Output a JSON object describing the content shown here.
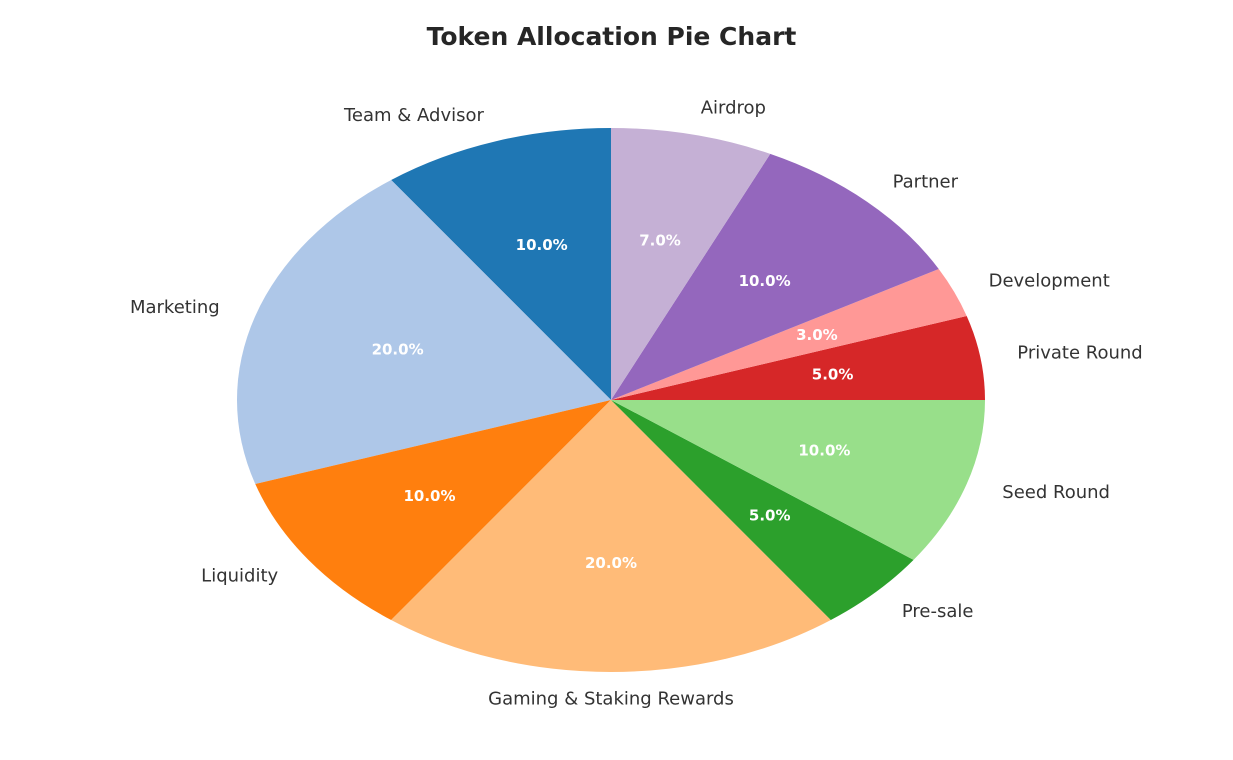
{
  "chart_data": {
    "type": "pie",
    "title": "Token Allocation Pie Chart",
    "slices": [
      {
        "label": "Private Round",
        "value": 5.0,
        "pct_text": "5.0%",
        "color": "#d62728"
      },
      {
        "label": "Development",
        "value": 3.0,
        "pct_text": "3.0%",
        "color": "#ff9896"
      },
      {
        "label": "Partner",
        "value": 10.0,
        "pct_text": "10.0%",
        "color": "#9467bd"
      },
      {
        "label": "Airdrop",
        "value": 7.0,
        "pct_text": "7.0%",
        "color": "#c5b0d5"
      },
      {
        "label": "Team & Advisor",
        "value": 10.0,
        "pct_text": "10.0%",
        "color": "#1f77b4"
      },
      {
        "label": "Marketing",
        "value": 20.0,
        "pct_text": "20.0%",
        "color": "#aec7e8"
      },
      {
        "label": "Liquidity",
        "value": 10.0,
        "pct_text": "10.0%",
        "color": "#ff7f0e"
      },
      {
        "label": "Gaming & Staking Rewards",
        "value": 20.0,
        "pct_text": "20.0%",
        "color": "#ffbb78"
      },
      {
        "label": "Pre-sale",
        "value": 5.0,
        "pct_text": "5.0%",
        "color": "#2ca02c"
      },
      {
        "label": "Seed Round",
        "value": 10.0,
        "pct_text": "10.0%",
        "color": "#98df8a"
      }
    ],
    "start_angle_deg": 0,
    "direction": "counterclockwise"
  }
}
